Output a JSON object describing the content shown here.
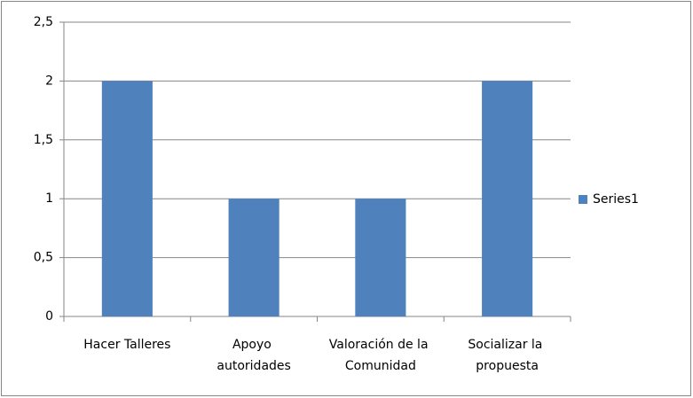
{
  "chart_data": {
    "type": "bar",
    "categories": [
      "Hacer Talleres",
      "Apoyo autoridades",
      "Valoración de la Comunidad",
      "Socializar la propuesta"
    ],
    "series": [
      {
        "name": "Series1",
        "color": "#4f81bd",
        "values": [
          2,
          1,
          1,
          2
        ]
      }
    ],
    "ylim": [
      0,
      2.5
    ],
    "yticks": [
      0,
      {
        "value": 0.5,
        "label": "0,5"
      },
      1,
      {
        "value": 1.5,
        "label": "1,5"
      },
      2,
      {
        "value": 2.5,
        "label": "2,5"
      }
    ],
    "grid": true,
    "legend": "right"
  }
}
